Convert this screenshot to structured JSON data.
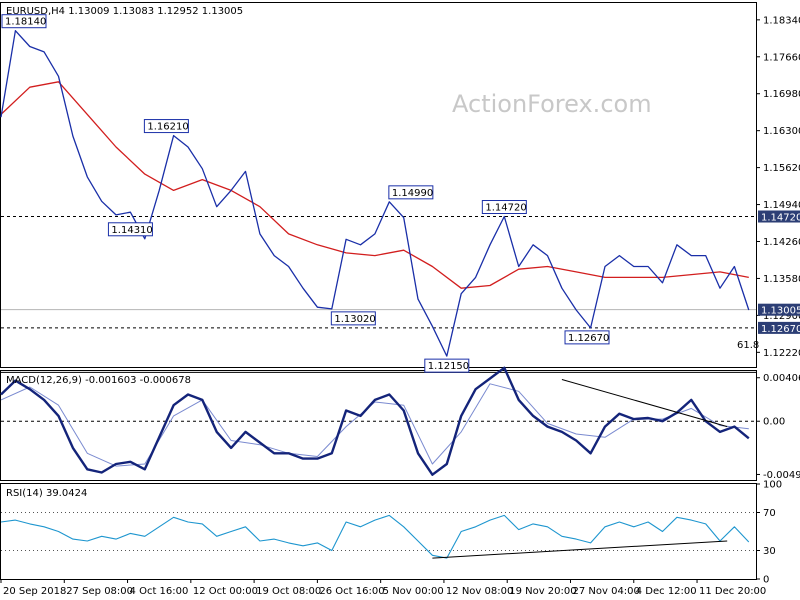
{
  "chart_data": [
    {
      "type": "line",
      "panel": "price",
      "header": "EURUSD,H4  1.13009 1.13083 1.12952 1.13005",
      "watermark": "ActionForex.com",
      "ylim": [
        1.1195,
        1.1865
      ],
      "y_ticks": [
        "1.18340",
        "1.17660",
        "1.16980",
        "1.16300",
        "1.15620",
        "1.14940",
        "1.14260",
        "1.13580",
        "1.12900",
        "1.12220"
      ],
      "y_tick_values": [
        1.1834,
        1.1766,
        1.1698,
        1.163,
        1.1562,
        1.1494,
        1.1426,
        1.1358,
        1.129,
        1.1222
      ],
      "price_tags": [
        {
          "text": "1.14720",
          "value": 1.1472
        },
        {
          "text": "1.13005",
          "value": 1.13005
        },
        {
          "text": "1.12670",
          "value": 1.1267
        }
      ],
      "horizontal_levels": [
        {
          "value": 1.1472,
          "style": "dashed"
        },
        {
          "value": 1.1267,
          "style": "dashed"
        },
        {
          "value": 1.13005,
          "style": "solid-light"
        },
        {
          "value": 1.1185,
          "style": "solid"
        }
      ],
      "fib_label": "61.8",
      "annotations": [
        {
          "text": "1.18140",
          "x": 0,
          "y": 1.1814
        },
        {
          "text": "1.16210",
          "x": 46,
          "y": 1.1621
        },
        {
          "text": "1.14310",
          "x": 36,
          "y": 1.1431
        },
        {
          "text": "1.14990",
          "x": 114,
          "y": 1.1499
        },
        {
          "text": "1.13020",
          "x": 98,
          "y": 1.1302
        },
        {
          "text": "1.14720",
          "x": 140,
          "y": 1.1472
        },
        {
          "text": "1.12150",
          "x": 124,
          "y": 1.1215
        },
        {
          "text": "1.12670",
          "x": 163,
          "y": 1.1267
        }
      ],
      "series": [
        {
          "name": "price",
          "color": "#1a2fa8",
          "x": [
            0,
            4,
            8,
            12,
            16,
            20,
            24,
            28,
            32,
            36,
            40,
            44,
            48,
            52,
            56,
            60,
            64,
            68,
            72,
            76,
            80,
            84,
            88,
            92,
            96,
            100,
            104,
            108,
            112,
            116,
            120,
            124,
            128,
            132,
            136,
            140,
            144,
            148,
            152,
            156,
            160,
            164,
            168,
            172,
            176,
            180,
            184,
            188,
            192,
            196,
            200,
            204,
            208
          ],
          "values": [
            1.1655,
            1.1814,
            1.1785,
            1.1775,
            1.173,
            1.162,
            1.1545,
            1.15,
            1.1475,
            1.148,
            1.1431,
            1.152,
            1.1621,
            1.16,
            1.156,
            1.149,
            1.152,
            1.1555,
            1.144,
            1.14,
            1.138,
            1.134,
            1.1305,
            1.1302,
            1.143,
            1.142,
            1.144,
            1.1499,
            1.147,
            1.132,
            1.127,
            1.1215,
            1.133,
            1.136,
            1.142,
            1.1472,
            1.138,
            1.142,
            1.14,
            1.134,
            1.13,
            1.1267,
            1.138,
            1.14,
            1.138,
            1.138,
            1.135,
            1.142,
            1.14,
            1.14,
            1.134,
            1.138,
            1.13
          ]
        },
        {
          "name": "moving-average",
          "color": "#d21e1e",
          "x": [
            0,
            8,
            16,
            24,
            32,
            40,
            48,
            56,
            64,
            72,
            80,
            88,
            96,
            104,
            112,
            120,
            128,
            136,
            144,
            152,
            160,
            168,
            176,
            184,
            192,
            200,
            208
          ],
          "values": [
            1.166,
            1.171,
            1.172,
            1.166,
            1.16,
            1.155,
            1.152,
            1.154,
            1.152,
            1.149,
            1.144,
            1.142,
            1.1405,
            1.14,
            1.141,
            1.138,
            1.134,
            1.1345,
            1.1375,
            1.138,
            1.137,
            1.136,
            1.136,
            1.136,
            1.1365,
            1.137,
            1.136
          ]
        }
      ]
    },
    {
      "type": "line",
      "panel": "macd",
      "header": "MACD(12,26,9) -0.001603 -0.000678",
      "ylim": [
        -0.0055,
        0.0047
      ],
      "y_ticks": [
        "0.004069",
        "0.00",
        "-0.004981"
      ],
      "y_tick_values": [
        0.004069,
        0.0,
        -0.004981
      ],
      "trendline": {
        "x": [
          156,
          202
        ],
        "values": [
          0.0039,
          -0.0005
        ]
      },
      "series": [
        {
          "name": "macd",
          "color": "#14247a",
          "x": [
            0,
            4,
            8,
            12,
            16,
            20,
            24,
            28,
            32,
            36,
            40,
            44,
            48,
            52,
            56,
            60,
            64,
            68,
            72,
            76,
            80,
            84,
            88,
            92,
            96,
            100,
            104,
            108,
            112,
            116,
            120,
            124,
            128,
            132,
            136,
            140,
            144,
            148,
            152,
            156,
            160,
            164,
            168,
            172,
            176,
            180,
            184,
            188,
            192,
            196,
            200,
            204,
            208
          ],
          "values": [
            0.0025,
            0.0038,
            0.003,
            0.002,
            0.0005,
            -0.0025,
            -0.0045,
            -0.0048,
            -0.004,
            -0.0038,
            -0.0045,
            -0.0015,
            0.0015,
            0.0025,
            0.002,
            -0.001,
            -0.0025,
            -0.001,
            -0.002,
            -0.003,
            -0.003,
            -0.0035,
            -0.0035,
            -0.003,
            0.001,
            0.0005,
            0.002,
            0.0025,
            0.001,
            -0.003,
            -0.005,
            -0.004,
            0.0005,
            0.003,
            0.004,
            0.005,
            0.002,
            0.0005,
            -0.0005,
            -0.001,
            -0.0018,
            -0.003,
            -0.0005,
            0.0007,
            0.0002,
            0.0003,
            0.0,
            0.0008,
            0.002,
            0.0,
            -0.001,
            -0.0005,
            -0.0016
          ]
        },
        {
          "name": "signal",
          "color": "#7a8ad0",
          "x": [
            0,
            8,
            16,
            24,
            32,
            40,
            48,
            56,
            64,
            72,
            80,
            88,
            96,
            104,
            112,
            120,
            128,
            136,
            144,
            152,
            160,
            168,
            176,
            184,
            192,
            200,
            208
          ],
          "values": [
            0.002,
            0.0032,
            0.0015,
            -0.003,
            -0.0042,
            -0.004,
            0.0005,
            0.002,
            -0.0018,
            -0.0022,
            -0.003,
            -0.0033,
            -0.0005,
            0.0018,
            0.0015,
            -0.004,
            -0.001,
            0.0035,
            0.0028,
            -0.0002,
            -0.0012,
            -0.0015,
            0.0002,
            0.0002,
            0.0012,
            -0.0004,
            -0.0007
          ]
        }
      ]
    },
    {
      "type": "line",
      "panel": "rsi",
      "header": "RSI(14) 39.0424",
      "ylim": [
        0,
        100
      ],
      "y_ticks": [
        "100",
        "70",
        "30",
        "0"
      ],
      "y_tick_values": [
        100,
        70,
        30,
        0
      ],
      "dotted_levels": [
        70,
        30
      ],
      "trendline": {
        "x": [
          120,
          202
        ],
        "values": [
          22,
          40
        ]
      },
      "series": [
        {
          "name": "rsi",
          "color": "#1e96cf",
          "x": [
            0,
            4,
            8,
            12,
            16,
            20,
            24,
            28,
            32,
            36,
            40,
            44,
            48,
            52,
            56,
            60,
            64,
            68,
            72,
            76,
            80,
            84,
            88,
            92,
            96,
            100,
            104,
            108,
            112,
            116,
            120,
            124,
            128,
            132,
            136,
            140,
            144,
            148,
            152,
            156,
            160,
            164,
            168,
            172,
            176,
            180,
            184,
            188,
            192,
            196,
            200,
            204,
            208
          ],
          "values": [
            60,
            62,
            58,
            55,
            50,
            42,
            40,
            45,
            42,
            48,
            45,
            55,
            65,
            60,
            58,
            45,
            50,
            55,
            40,
            42,
            38,
            35,
            38,
            30,
            60,
            55,
            62,
            67,
            55,
            40,
            25,
            22,
            50,
            55,
            62,
            67,
            52,
            58,
            55,
            45,
            42,
            38,
            55,
            60,
            55,
            60,
            50,
            65,
            62,
            58,
            40,
            55,
            39
          ]
        }
      ]
    }
  ],
  "x_axis": {
    "min": 0,
    "max": 210,
    "tick_labels": [
      "20 Sep 2018",
      "27 Sep 08:00",
      "4 Oct 16:00",
      "12 Oct 00:00",
      "19 Oct 08:00",
      "26 Oct 16:00",
      "5 Nov 00:00",
      "12 Nov 08:00",
      "19 Nov 20:00",
      "27 Nov 04:00",
      "4 Dec 12:00",
      "11 Dec 20:00"
    ],
    "tick_x": [
      0,
      17.6,
      35.2,
      52.8,
      70.4,
      88,
      105.6,
      123.2,
      140.8,
      158.4,
      176,
      193.6
    ]
  },
  "colors": {
    "frame": "#000000",
    "tag_bg": "#2c3e75",
    "grid": "#000000"
  }
}
